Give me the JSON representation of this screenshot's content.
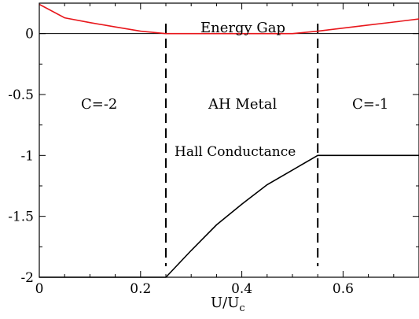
{
  "chart_data": {
    "type": "line",
    "xlabel_main": "U/U",
    "xlabel_sub": "c",
    "xlim": [
      0,
      0.75
    ],
    "ylim": [
      -2,
      0.25
    ],
    "xticks": [
      "0",
      "0.2",
      "0.4",
      "0.6"
    ],
    "xtick_values": [
      0,
      0.2,
      0.4,
      0.6
    ],
    "yticks": [
      "0",
      "-0.5",
      "-1",
      "-1.5",
      "-2"
    ],
    "ytick_values": [
      0,
      -0.5,
      -1,
      -1.5,
      -2
    ],
    "grid": false,
    "series": [
      {
        "name": "Energy Gap",
        "color": "#e8171c",
        "x": [
          0,
          0.05,
          0.1,
          0.15,
          0.2,
          0.25,
          0.3,
          0.35,
          0.4,
          0.45,
          0.5,
          0.55,
          0.6,
          0.65,
          0.7,
          0.75
        ],
        "y": [
          0.24,
          0.13,
          0.09,
          0.055,
          0.02,
          0.0,
          0.0,
          0.0,
          0.0,
          0.0,
          0.0,
          0.02,
          0.045,
          0.07,
          0.095,
          0.12
        ]
      },
      {
        "name": "Hall Conductance",
        "color": "#000000",
        "x": [
          0,
          0.25,
          0.3,
          0.35,
          0.4,
          0.45,
          0.5,
          0.55,
          0.6,
          0.75
        ],
        "y": [
          -2,
          -2,
          -1.78,
          -1.57,
          -1.4,
          -1.24,
          -1.12,
          -1.0,
          -1.0,
          -1.0
        ]
      }
    ],
    "reference_lines": {
      "horizontal_zero": 0,
      "vertical_dashed": [
        0.25,
        0.55
      ]
    },
    "annotations": {
      "energy_gap": "Energy Gap",
      "hall_conductance": "Hall Conductance",
      "phase_left": "C=-2",
      "phase_middle": "AH Metal",
      "phase_right": "C=-1"
    }
  }
}
